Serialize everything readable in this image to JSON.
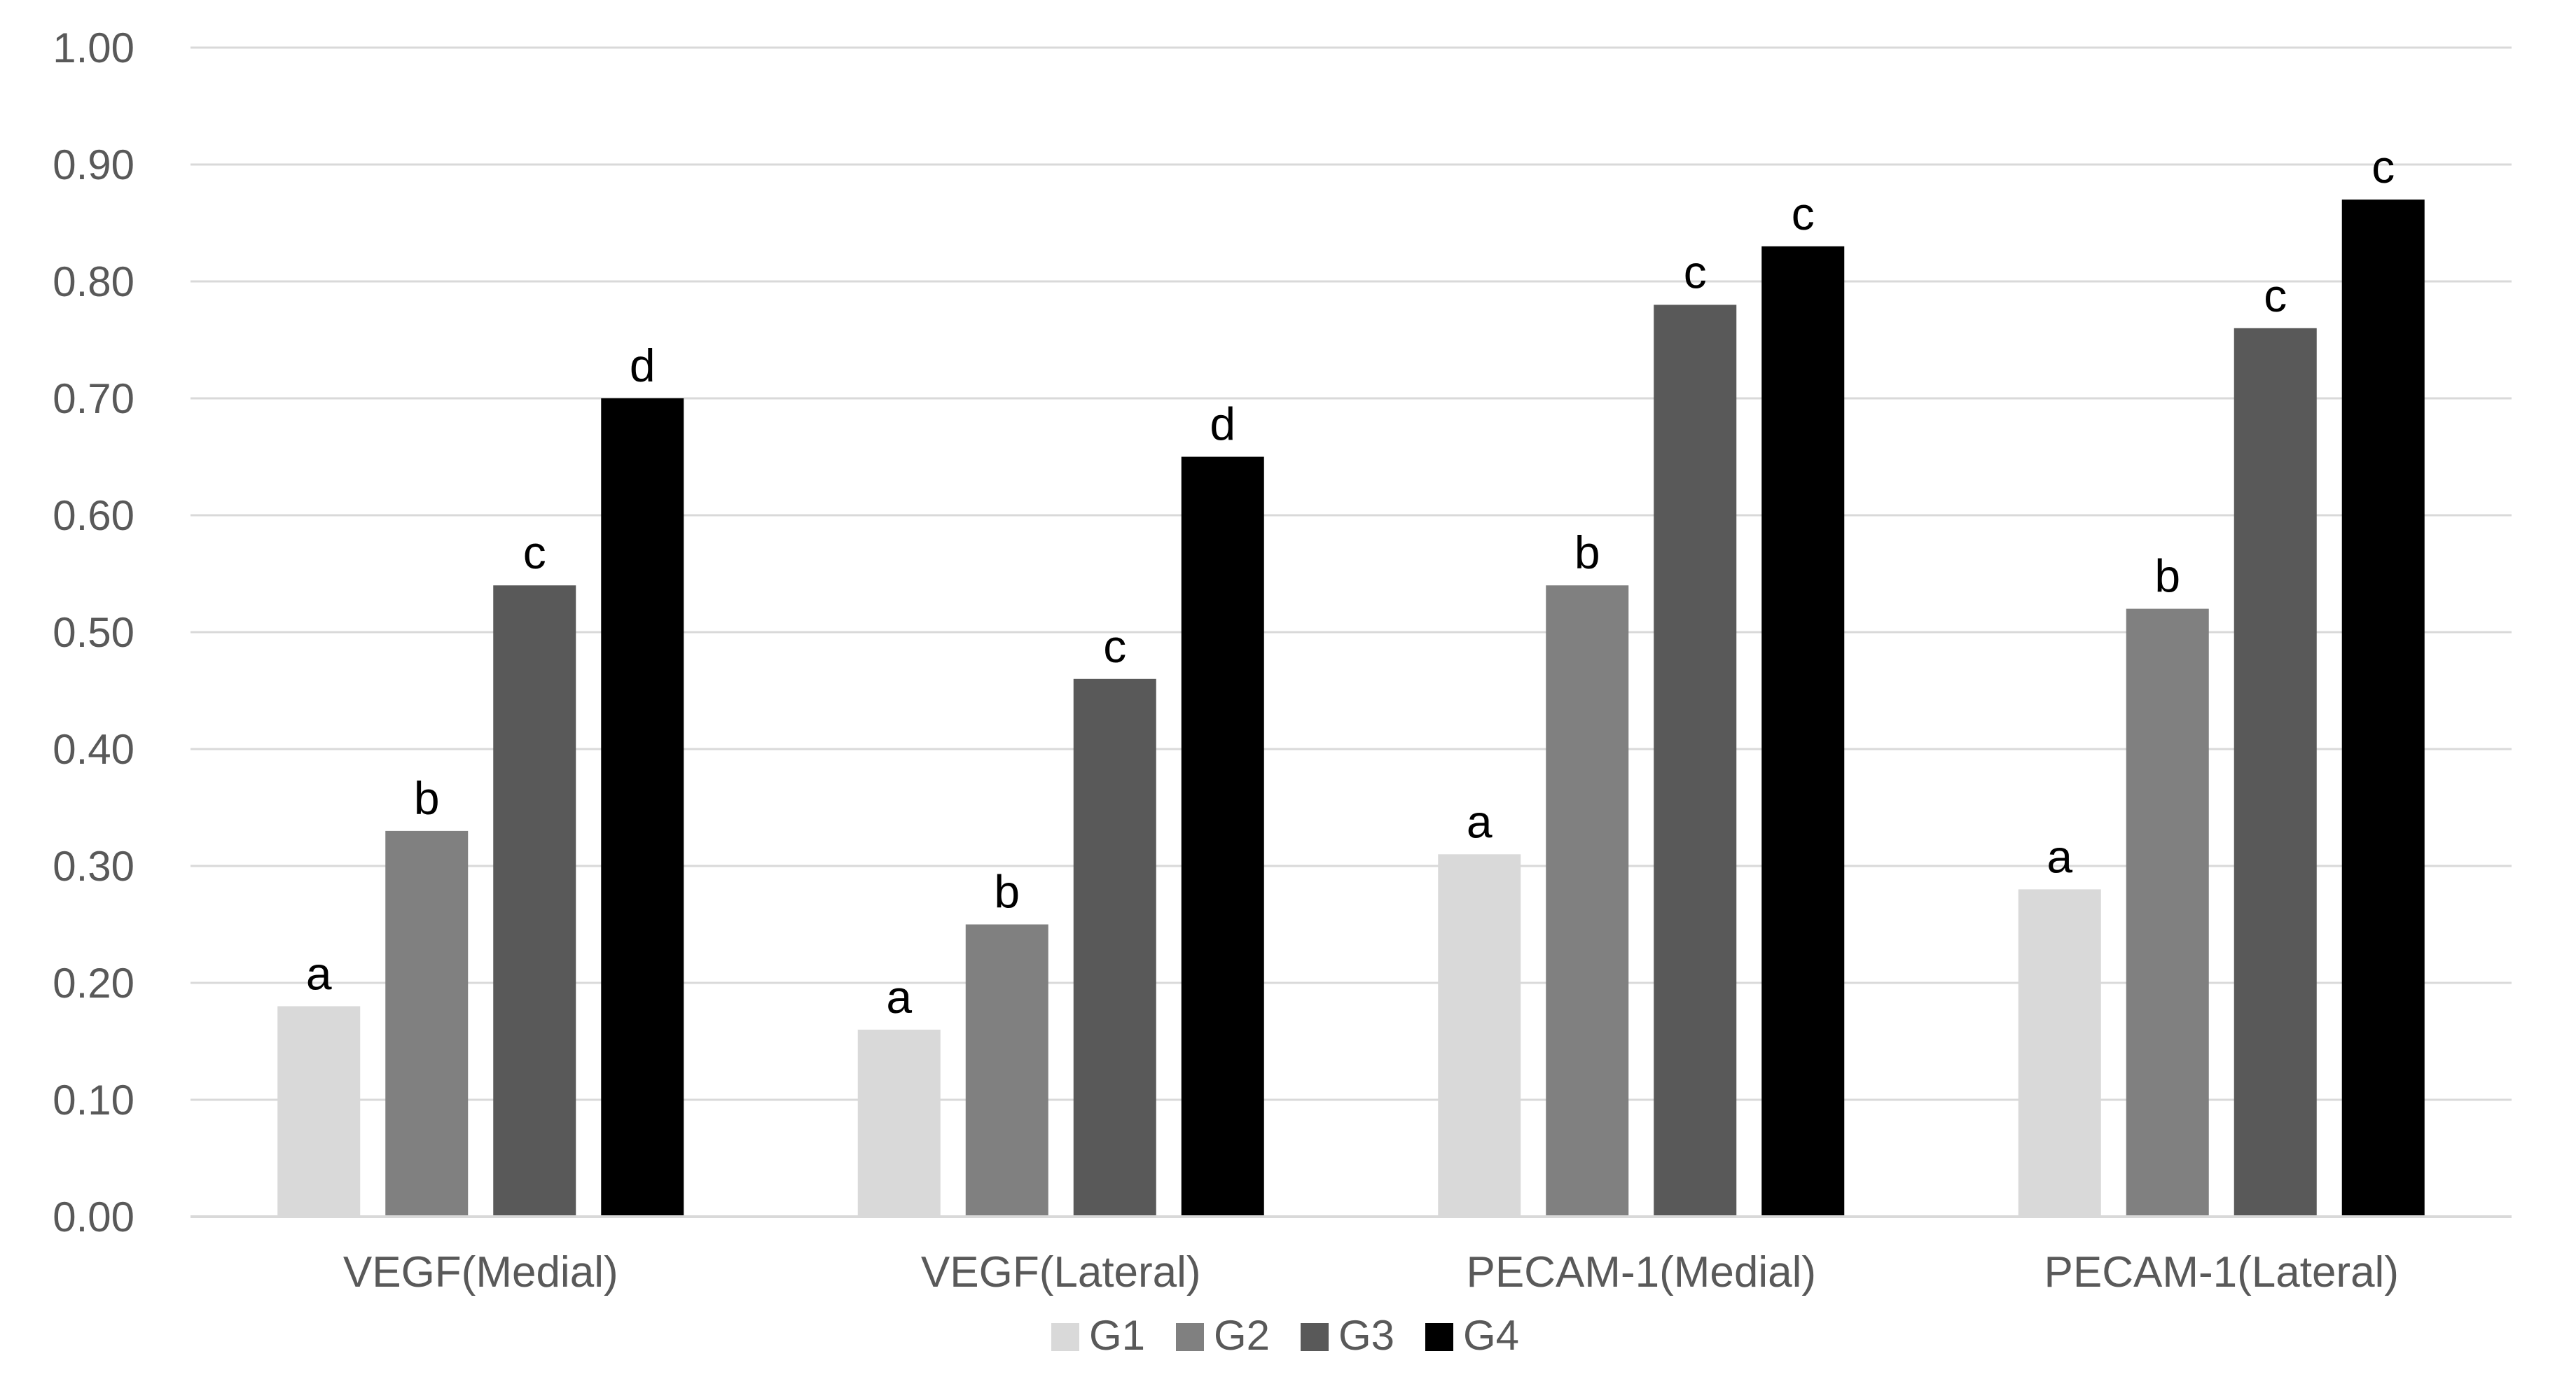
{
  "chart_data": {
    "type": "bar",
    "title": "",
    "xlabel": "",
    "ylabel": "",
    "ylim": [
      0,
      1
    ],
    "yticks": [
      "0.00",
      "0.10",
      "0.20",
      "0.30",
      "0.40",
      "0.50",
      "0.60",
      "0.70",
      "0.80",
      "0.90",
      "1.00"
    ],
    "grid": true,
    "legend_position": "bottom",
    "categories": [
      "VEGF(Medial)",
      "VEGF(Lateral)",
      "PECAM-1(Medial)",
      "PECAM-1(Lateral)"
    ],
    "series": [
      {
        "name": "G1",
        "color": "#d9d9d9",
        "values": [
          0.18,
          0.16,
          0.31,
          0.28
        ],
        "labels": [
          "a",
          "a",
          "a",
          "a"
        ]
      },
      {
        "name": "G2",
        "color": "#808080",
        "values": [
          0.33,
          0.25,
          0.54,
          0.52
        ],
        "labels": [
          "b",
          "b",
          "b",
          "b"
        ]
      },
      {
        "name": "G3",
        "color": "#595959",
        "values": [
          0.54,
          0.46,
          0.78,
          0.76
        ],
        "labels": [
          "c",
          "c",
          "c",
          "c"
        ]
      },
      {
        "name": "G4",
        "color": "#000000",
        "values": [
          0.7,
          0.65,
          0.83,
          0.87
        ],
        "labels": [
          "d",
          "d",
          "c",
          "c"
        ]
      }
    ]
  }
}
